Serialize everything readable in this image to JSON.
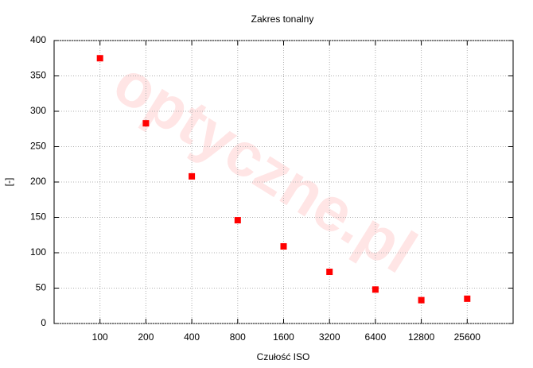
{
  "chart_data": {
    "type": "scatter",
    "title": "Zakres tonalny",
    "x_label": "Czułość ISO",
    "y_label": "[-]",
    "watermark": "optyczne.pl",
    "x": [
      100,
      200,
      400,
      800,
      1600,
      3200,
      6400,
      12800,
      25600
    ],
    "values": [
      375,
      283,
      208,
      146,
      109,
      73,
      48,
      33,
      35
    ],
    "color": "#ff0000",
    "x_log_base": 2,
    "xlim": [
      50,
      51200
    ],
    "xticks": [
      100,
      200,
      400,
      800,
      1600,
      3200,
      6400,
      12800,
      25600
    ],
    "ylim": [
      0,
      400
    ],
    "yticks": [
      0,
      50,
      100,
      150,
      200,
      250,
      300,
      350,
      400
    ],
    "grid": true
  }
}
